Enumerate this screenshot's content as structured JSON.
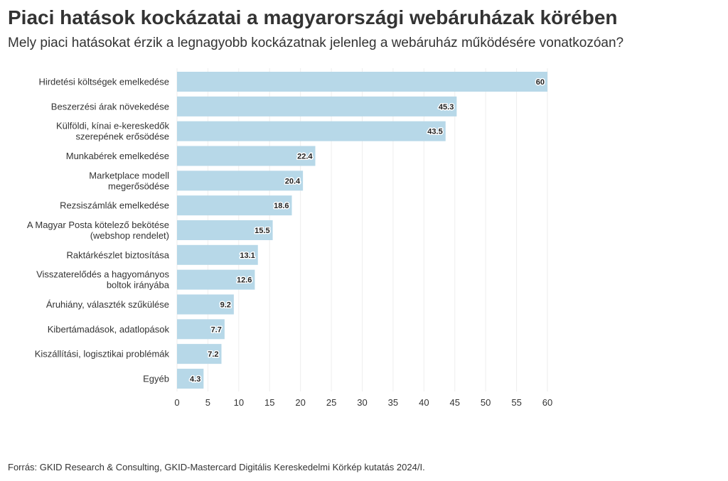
{
  "title": "Piaci hatások kockázatai a magyarországi webáruházak körében",
  "subtitle": "Mely piaci hatásokat érzik a legnagyobb kockázatnak jelenleg a webáruház működésére vonatkozóan?",
  "source": "Forrás: GKID Research & Consulting, GKID-Mastercard Digitális Kereskedelmi Körkép kutatás 2024/I.",
  "chart_data": {
    "type": "bar",
    "orientation": "horizontal",
    "categories": [
      [
        "Hirdetési költségek emelkedése"
      ],
      [
        "Beszerzési árak növekedése"
      ],
      [
        "Külföldi, kínai e-kereskedők",
        "szerepének erősödése"
      ],
      [
        "Munkabérek emelkedése"
      ],
      [
        "Marketplace modell",
        "megerősödése"
      ],
      [
        "Rezsiszámlák emelkedése"
      ],
      [
        "A Magyar Posta kötelező bekötése",
        "(webshop rendelet)"
      ],
      [
        "Raktárkészlet biztosítása"
      ],
      [
        "Visszaterelődés a hagyományos",
        "boltok irányába"
      ],
      [
        "Áruhiány, választék szűkülése"
      ],
      [
        "Kibertámadások, adatlopások"
      ],
      [
        "Kiszállítási, logisztikai problémák"
      ],
      [
        "Egyéb"
      ]
    ],
    "values": [
      60,
      45.3,
      43.5,
      22.4,
      20.4,
      18.6,
      15.5,
      13.1,
      12.6,
      9.2,
      7.7,
      7.2,
      4.3
    ],
    "value_labels": [
      "60",
      "45.3",
      "43.5",
      "22.4",
      "20.4",
      "18.6",
      "15.5",
      "13.1",
      "12.6",
      "9.2",
      "7.7",
      "7.2",
      "4.3"
    ],
    "xlim": [
      0,
      60
    ],
    "xticks": [
      0,
      5,
      10,
      15,
      20,
      25,
      30,
      35,
      40,
      45,
      50,
      55,
      60
    ],
    "grid": true,
    "bar_color": "#b7d8e8",
    "grid_color": "#eeeeee"
  }
}
